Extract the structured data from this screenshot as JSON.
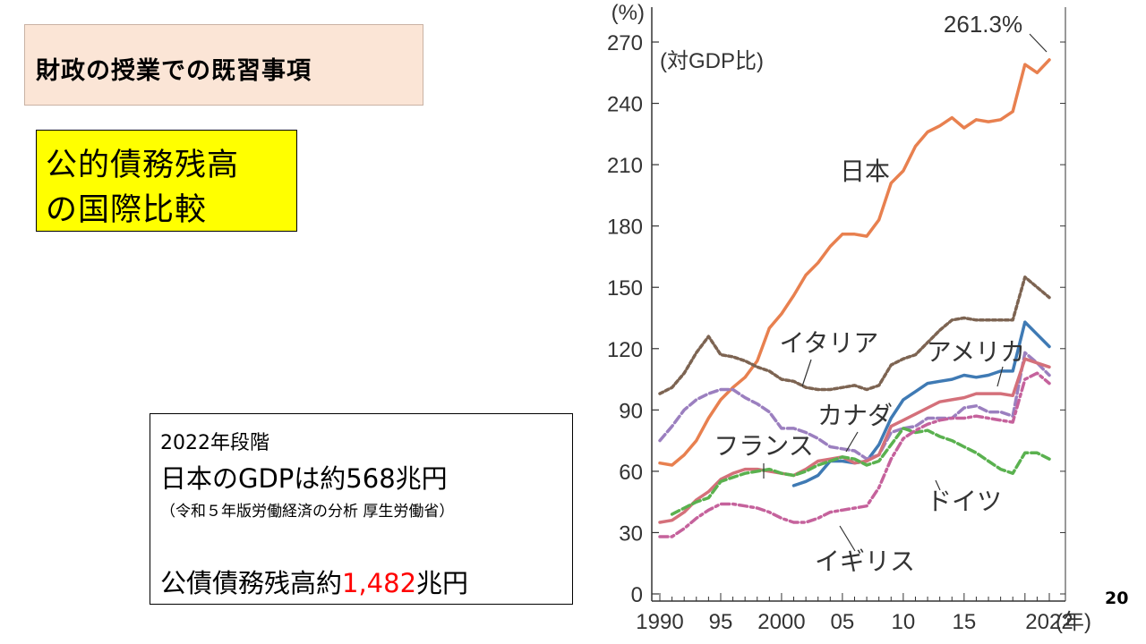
{
  "header": {
    "title": "財政の授業での既習事項"
  },
  "topic": {
    "line1": "公的債務残高",
    "line2": "の国際比較"
  },
  "info": {
    "line1": "2022年段階",
    "line2": "日本のGDPは約568兆円",
    "line3": "（令和５年版労働経済の分析 厚生労働省）",
    "line4_prefix": "公債債務残高約",
    "line4_amount": "1,482",
    "line4_suffix": "兆円"
  },
  "page_number": "20",
  "chart_data": {
    "type": "line",
    "title": "",
    "ylabel": "(%)",
    "xlabel": "(年)",
    "subtitle": "(対GDP比)",
    "ylim": [
      0,
      280
    ],
    "xlim": [
      1990,
      2022
    ],
    "yticks": [
      0,
      30,
      60,
      90,
      120,
      150,
      180,
      210,
      240,
      270
    ],
    "xticks": [
      1990,
      1995,
      2000,
      2005,
      2010,
      2015,
      2022
    ],
    "xtick_labels": [
      "1990",
      "95",
      "2000",
      "05",
      "10",
      "15",
      "2022"
    ],
    "annotation": "261.3%",
    "series": [
      {
        "name": "日本",
        "color": "#e8804f",
        "style": "solid",
        "x": [
          1990,
          1991,
          1992,
          1993,
          1994,
          1995,
          1996,
          1997,
          1998,
          1999,
          2000,
          2001,
          2002,
          2003,
          2004,
          2005,
          2006,
          2007,
          2008,
          2009,
          2010,
          2011,
          2012,
          2013,
          2014,
          2015,
          2016,
          2017,
          2018,
          2019,
          2020,
          2021,
          2022
        ],
        "values": [
          64,
          63,
          68,
          75,
          86,
          95,
          101,
          106,
          114,
          130,
          137,
          146,
          156,
          162,
          170,
          176,
          176,
          175,
          183,
          201,
          207,
          219,
          226,
          229,
          233,
          228,
          232,
          231,
          232,
          236,
          259,
          255,
          261.3
        ]
      },
      {
        "name": "イタリア",
        "color": "#7d6452",
        "style": "dotted",
        "x": [
          1990,
          1991,
          1992,
          1993,
          1994,
          1995,
          1996,
          1997,
          1998,
          1999,
          2000,
          2001,
          2002,
          2003,
          2004,
          2005,
          2006,
          2007,
          2008,
          2009,
          2010,
          2011,
          2012,
          2013,
          2014,
          2015,
          2016,
          2017,
          2018,
          2019,
          2020,
          2021,
          2022
        ],
        "values": [
          98,
          101,
          108,
          118,
          126,
          117,
          116,
          114,
          111,
          109,
          105,
          104,
          101,
          100,
          100,
          101,
          102,
          100,
          102,
          112,
          115,
          117,
          123,
          129,
          134,
          135,
          134,
          134,
          134,
          134,
          155,
          150,
          145
        ]
      },
      {
        "name": "アメリカ",
        "color": "#3f7ab4",
        "style": "solid",
        "x": [
          2001,
          2002,
          2003,
          2004,
          2005,
          2006,
          2007,
          2008,
          2009,
          2010,
          2011,
          2012,
          2013,
          2014,
          2015,
          2016,
          2017,
          2018,
          2019,
          2020,
          2021,
          2022
        ],
        "values": [
          53,
          55,
          58,
          65,
          65,
          64,
          65,
          73,
          86,
          95,
          99,
          103,
          104,
          105,
          107,
          106,
          107,
          109,
          109,
          133,
          127,
          121
        ]
      },
      {
        "name": "カナダ",
        "color": "#9b7fbf",
        "style": "dashed",
        "x": [
          1990,
          1991,
          1992,
          1993,
          1994,
          1995,
          1996,
          1997,
          1998,
          1999,
          2000,
          2001,
          2002,
          2003,
          2004,
          2005,
          2006,
          2007,
          2008,
          2009,
          2010,
          2011,
          2012,
          2013,
          2014,
          2015,
          2016,
          2017,
          2018,
          2019,
          2020,
          2021,
          2022
        ],
        "values": [
          75,
          82,
          90,
          95,
          98,
          100,
          100,
          96,
          93,
          89,
          81,
          81,
          79,
          76,
          72,
          71,
          70,
          66,
          68,
          79,
          81,
          82,
          86,
          86,
          86,
          91,
          92,
          89,
          89,
          87,
          118,
          113,
          107
        ]
      },
      {
        "name": "フランス",
        "color": "#d4707a",
        "style": "solid",
        "x": [
          1990,
          1991,
          1992,
          1993,
          1994,
          1995,
          1996,
          1997,
          1998,
          1999,
          2000,
          2001,
          2002,
          2003,
          2004,
          2005,
          2006,
          2007,
          2008,
          2009,
          2010,
          2011,
          2012,
          2013,
          2014,
          2015,
          2016,
          2017,
          2018,
          2019,
          2020,
          2021,
          2022
        ],
        "values": [
          35,
          36,
          40,
          46,
          50,
          56,
          59,
          61,
          61,
          60,
          59,
          58,
          61,
          65,
          66,
          67,
          64,
          65,
          68,
          82,
          85,
          88,
          91,
          94,
          95,
          96,
          98,
          98,
          98,
          97,
          115,
          113,
          111
        ]
      },
      {
        "name": "ドイツ",
        "color": "#5ab14f",
        "style": "dashed",
        "x": [
          1991,
          1992,
          1993,
          1994,
          1995,
          1996,
          1997,
          1998,
          1999,
          2000,
          2001,
          2002,
          2003,
          2004,
          2005,
          2006,
          2007,
          2008,
          2009,
          2010,
          2011,
          2012,
          2013,
          2014,
          2015,
          2016,
          2017,
          2018,
          2019,
          2020,
          2021,
          2022
        ],
        "values": [
          39,
          42,
          45,
          47,
          55,
          57,
          59,
          60,
          61,
          59,
          58,
          60,
          63,
          65,
          67,
          66,
          63,
          65,
          73,
          81,
          79,
          80,
          77,
          75,
          72,
          69,
          65,
          61,
          59,
          69,
          69,
          66
        ]
      },
      {
        "name": "イギリス",
        "color": "#c5629c",
        "style": "dashdot",
        "x": [
          1990,
          1991,
          1992,
          1993,
          1994,
          1995,
          1996,
          1997,
          1998,
          1999,
          2000,
          2001,
          2002,
          2003,
          2004,
          2005,
          2006,
          2007,
          2008,
          2009,
          2010,
          2011,
          2012,
          2013,
          2014,
          2015,
          2016,
          2017,
          2018,
          2019,
          2020,
          2021,
          2022
        ],
        "values": [
          28,
          28,
          32,
          37,
          41,
          44,
          44,
          43,
          42,
          40,
          37,
          35,
          35,
          37,
          40,
          41,
          42,
          43,
          52,
          66,
          76,
          80,
          83,
          85,
          86,
          86,
          87,
          86,
          85,
          84,
          105,
          108,
          103
        ]
      }
    ],
    "labels": [
      {
        "series": "日本",
        "text": "日本"
      },
      {
        "series": "イタリア",
        "text": "イタリア"
      },
      {
        "series": "アメリカ",
        "text": "アメリカ"
      },
      {
        "series": "カナダ",
        "text": "カナダ"
      },
      {
        "series": "フランス",
        "text": "フランス"
      },
      {
        "series": "ドイツ",
        "text": "ドイツ"
      },
      {
        "series": "イギリス",
        "text": "イギリス"
      }
    ]
  }
}
